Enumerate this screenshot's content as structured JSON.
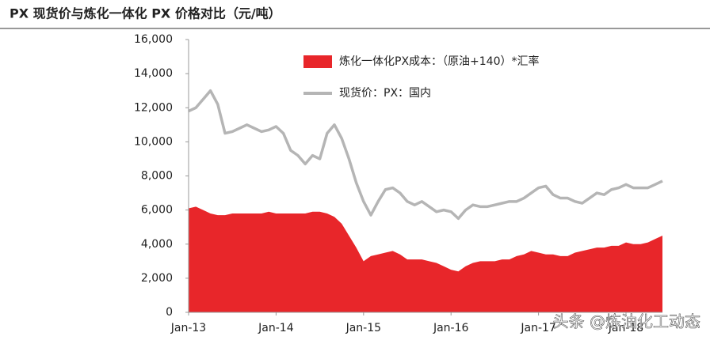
{
  "chart_data": {
    "type": "area-line",
    "title": "PX 现货价与炼化一体化 PX 价格对比（元/吨）",
    "watermark": "头条 @炼油化工动态",
    "x": [
      "2013-01",
      "2013-02",
      "2013-03",
      "2013-04",
      "2013-05",
      "2013-06",
      "2013-07",
      "2013-08",
      "2013-09",
      "2013-10",
      "2013-11",
      "2013-12",
      "2014-01",
      "2014-02",
      "2014-03",
      "2014-04",
      "2014-05",
      "2014-06",
      "2014-07",
      "2014-08",
      "2014-09",
      "2014-10",
      "2014-11",
      "2014-12",
      "2015-01",
      "2015-02",
      "2015-03",
      "2015-04",
      "2015-05",
      "2015-06",
      "2015-07",
      "2015-08",
      "2015-09",
      "2015-10",
      "2015-11",
      "2015-12",
      "2016-01",
      "2016-02",
      "2016-03",
      "2016-04",
      "2016-05",
      "2016-06",
      "2016-07",
      "2016-08",
      "2016-09",
      "2016-10",
      "2016-11",
      "2016-12",
      "2017-01",
      "2017-02",
      "2017-03",
      "2017-04",
      "2017-05",
      "2017-06",
      "2017-07",
      "2017-08",
      "2017-09",
      "2017-10",
      "2017-11",
      "2017-12",
      "2018-01",
      "2018-02",
      "2018-03",
      "2018-04",
      "2018-05",
      "2018-06"
    ],
    "series": [
      {
        "name": "炼化一体化PX成本：（原油+140）*汇率",
        "color": "#e8262a",
        "style": "area",
        "values": [
          6100,
          6200,
          6000,
          5800,
          5700,
          5700,
          5800,
          5800,
          5800,
          5800,
          5800,
          5900,
          5800,
          5800,
          5800,
          5800,
          5800,
          5900,
          5900,
          5800,
          5600,
          5200,
          4500,
          3800,
          3000,
          3300,
          3400,
          3500,
          3600,
          3400,
          3100,
          3100,
          3100,
          3000,
          2900,
          2700,
          2500,
          2400,
          2700,
          2900,
          3000,
          3000,
          3000,
          3100,
          3100,
          3300,
          3400,
          3600,
          3500,
          3400,
          3400,
          3300,
          3300,
          3500,
          3600,
          3700,
          3800,
          3800,
          3900,
          3900,
          4100,
          4000,
          4000,
          4100,
          4300,
          4500
        ]
      },
      {
        "name": "现货价：PX：国内",
        "color": "#b5b5b5",
        "style": "line",
        "values": [
          11800,
          12000,
          12500,
          13000,
          12200,
          10500,
          10600,
          10800,
          11000,
          10800,
          10600,
          10700,
          10900,
          10500,
          9500,
          9200,
          8700,
          9200,
          9000,
          10500,
          11000,
          10200,
          9000,
          7600,
          6500,
          5700,
          6500,
          7200,
          7300,
          7000,
          6500,
          6300,
          6500,
          6200,
          5900,
          6000,
          5900,
          5500,
          6000,
          6300,
          6200,
          6200,
          6300,
          6400,
          6500,
          6500,
          6700,
          7000,
          7300,
          7400,
          6900,
          6700,
          6700,
          6500,
          6400,
          6700,
          7000,
          6900,
          7200,
          7300,
          7500,
          7300,
          7300,
          7300,
          7500,
          7700
        ]
      }
    ],
    "xlim": [
      "2013-01",
      "2018-06"
    ],
    "xticks": [
      {
        "value": "2013-01",
        "label": "Jan-13"
      },
      {
        "value": "2014-01",
        "label": "Jan-14"
      },
      {
        "value": "2015-01",
        "label": "Jan-15"
      },
      {
        "value": "2016-01",
        "label": "Jan-16"
      },
      {
        "value": "2017-01",
        "label": "Jan-17"
      },
      {
        "value": "2018-01",
        "label": "Jan-18"
      }
    ],
    "ylim": [
      0,
      16000
    ],
    "yticks": [
      0,
      {
        "value": 2000,
        "label": "2,000"
      },
      {
        "value": 4000,
        "label": "4,000"
      },
      {
        "value": 6000,
        "label": "6,000"
      },
      {
        "value": 8000,
        "label": "8,000"
      },
      {
        "value": 10000,
        "label": "10,000"
      },
      {
        "value": 12000,
        "label": "12,000"
      },
      {
        "value": 14000,
        "label": "14,000"
      },
      {
        "value": 16000,
        "label": "16,000"
      }
    ]
  }
}
